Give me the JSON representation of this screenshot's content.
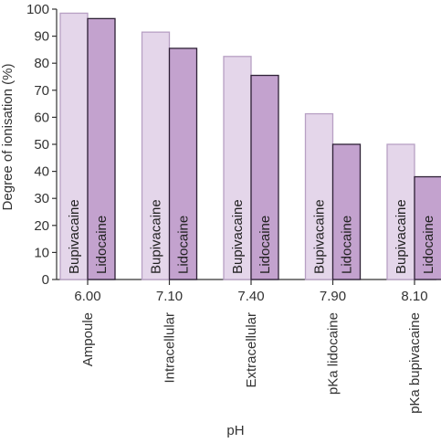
{
  "chart_data": {
    "type": "bar",
    "title": "",
    "xlabel": "pH",
    "ylabel": "Degree of ionisation (%)",
    "ylim": [
      0,
      100
    ],
    "yticks": [
      0,
      10,
      20,
      30,
      40,
      50,
      60,
      70,
      80,
      90,
      100
    ],
    "categories": [
      "6.00",
      "7.10",
      "7.40",
      "7.90",
      "8.10"
    ],
    "category_descriptions": [
      "Ampoule",
      "Intracellular",
      "Extracellular",
      "pKa lidocaine",
      "pKa bupivacaine"
    ],
    "series": [
      {
        "name": "Bupivacaine",
        "values": [
          98.5,
          91.5,
          82.5,
          61.3,
          50.0
        ],
        "color": "#e4d6ea",
        "stroke": "#b7a0c4"
      },
      {
        "name": "Lidocaine",
        "values": [
          96.5,
          85.5,
          75.5,
          50.0,
          38.0
        ],
        "color": "#c3a2ce",
        "stroke": "#2e2136"
      }
    ],
    "grid": false,
    "legend": "none"
  }
}
